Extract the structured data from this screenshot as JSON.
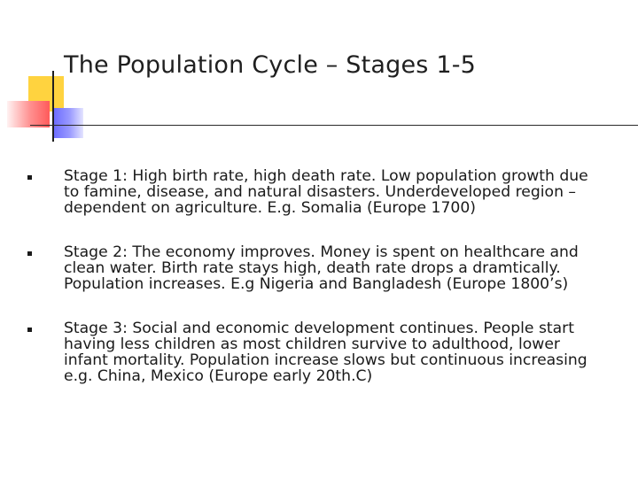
{
  "slide": {
    "title": "The Population Cycle – Stages 1-5",
    "bullets": [
      {
        "lines": [
          "Stage 1: High birth rate, high death rate. Low population growth due",
          "to famine, disease, and natural disasters. Underdeveloped region –",
          "dependent on agriculture. E.g. Somalia (Europe 1700)"
        ]
      },
      {
        "lines": [
          "Stage 2: The economy improves. Money is spent on healthcare and",
          "clean water. Birth rate stays high, death rate drops a dramtically.",
          "Population increases. E.g Nigeria and Bangladesh (Europe 1800’s)"
        ]
      },
      {
        "lines": [
          "Stage 3: Social and economic development continues. People start",
          "having less children as most children survive to adulthood, lower",
          "infant mortality. Population increase slows but continuous increasing",
          "e.g. China, Mexico (Europe early 20th.C)"
        ]
      }
    ]
  },
  "colors": {
    "accent_yellow": "#ffd33f",
    "accent_red": "#ff5a5a",
    "accent_blue": "#6b6bff"
  }
}
